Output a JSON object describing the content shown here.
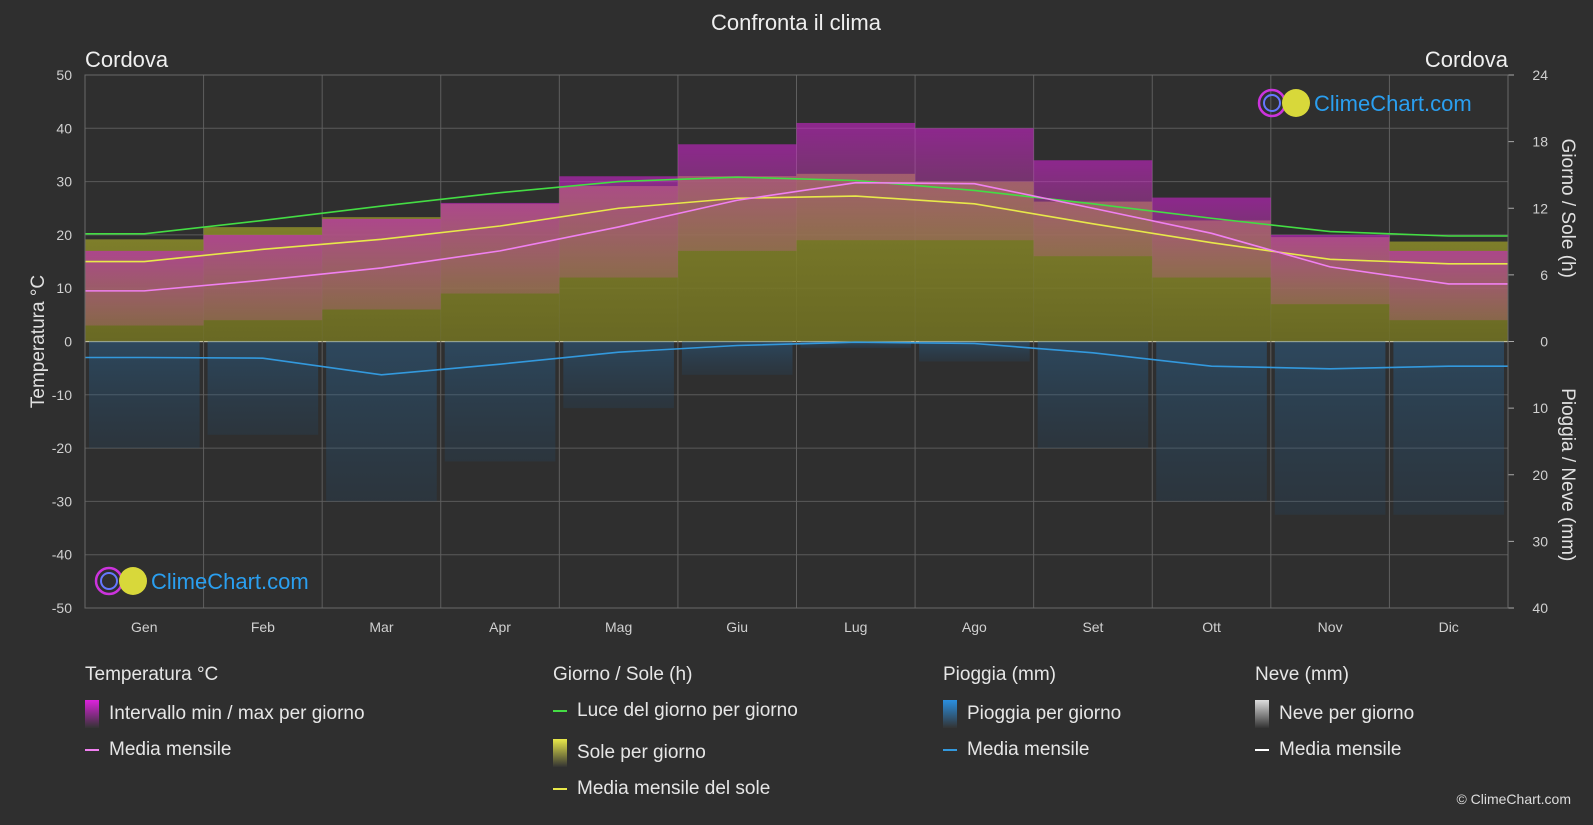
{
  "chart_data": {
    "type": "area",
    "title": "Confronta il clima",
    "location_left": "Cordova",
    "location_right": "Cordova",
    "ylabel_left": "Temperatura °C",
    "ylabel_right_top": "Giorno / Sole (h)",
    "ylabel_right_bottom": "Pioggia / Neve (mm)",
    "ylim_temperature": [
      -50,
      50
    ],
    "ylim_hours": [
      0,
      24
    ],
    "ylim_precip_mm": [
      0,
      40
    ],
    "left_ticks": [
      "50",
      "40",
      "30",
      "20",
      "10",
      "0",
      "-10",
      "-20",
      "-30",
      "-40",
      "-50"
    ],
    "right_top_ticks": [
      "24",
      "18",
      "12",
      "6",
      "0"
    ],
    "right_bottom_ticks": [
      "10",
      "20",
      "30",
      "40"
    ],
    "categories": [
      "Gen",
      "Feb",
      "Mar",
      "Apr",
      "Mag",
      "Giu",
      "Lug",
      "Ago",
      "Set",
      "Ott",
      "Nov",
      "Dic"
    ],
    "grid": true,
    "series": [
      {
        "name": "Luce del giorno per giorno",
        "unit": "h",
        "color": "#44dd44",
        "values": [
          9.7,
          10.9,
          12.2,
          13.4,
          14.4,
          14.8,
          14.5,
          13.6,
          12.4,
          11.1,
          9.9,
          9.5
        ]
      },
      {
        "name": "Media mensile del sole",
        "unit": "h",
        "color": "#e8e84a",
        "values": [
          7.2,
          8.3,
          9.2,
          10.4,
          12.0,
          12.9,
          13.1,
          12.4,
          10.6,
          8.9,
          7.4,
          7.0
        ]
      },
      {
        "name": "Media mensile",
        "unit": "°C",
        "color": "#f080f0",
        "values": [
          9.5,
          11.5,
          13.8,
          17.0,
          21.5,
          26.5,
          29.8,
          29.6,
          25.0,
          20.3,
          14.0,
          10.8
        ]
      },
      {
        "name": "Media mensile",
        "unit": "mm",
        "color": "#3399dd",
        "values": [
          2.4,
          2.5,
          5.0,
          3.4,
          1.6,
          0.6,
          0.1,
          0.3,
          1.7,
          3.7,
          4.1,
          3.7
        ]
      }
    ],
    "temp_range_daily": {
      "name": "Intervallo min / max per giorno",
      "min": [
        3,
        4,
        6,
        9,
        12,
        17,
        19,
        19,
        16,
        12,
        7,
        4
      ],
      "max": [
        17,
        20,
        23,
        26,
        31,
        37,
        41,
        40,
        34,
        27,
        20,
        17
      ]
    },
    "rain_daily": {
      "name": "Pioggia per giorno",
      "values_mm": [
        16,
        14,
        24,
        18,
        10,
        5,
        1,
        3,
        16,
        24,
        26,
        26
      ]
    }
  },
  "legend": {
    "groups": [
      {
        "title": "Temperatura °C",
        "items": [
          {
            "label": "Intervallo min / max per giorno",
            "swatch": "box",
            "color": "#dd22dd"
          },
          {
            "label": "Media mensile",
            "swatch": "line",
            "color": "#f080f0"
          }
        ]
      },
      {
        "title": "Giorno / Sole (h)",
        "items": [
          {
            "label": "Luce del giorno per giorno",
            "swatch": "line",
            "color": "#44dd44"
          },
          {
            "label": "Sole per giorno",
            "swatch": "box",
            "color": "#e8e84a"
          },
          {
            "label": "Media mensile del sole",
            "swatch": "line",
            "color": "#e8e84a"
          }
        ]
      },
      {
        "title": "Pioggia (mm)",
        "items": [
          {
            "label": "Pioggia per giorno",
            "swatch": "box",
            "color": "#2a8fe0"
          },
          {
            "label": "Media mensile",
            "swatch": "line",
            "color": "#3399dd"
          }
        ]
      },
      {
        "title": "Neve (mm)",
        "items": [
          {
            "label": "Neve per giorno",
            "swatch": "box",
            "color": "#dddddd"
          },
          {
            "label": "Media mensile",
            "swatch": "line",
            "color": "#ffffff"
          }
        ]
      }
    ]
  },
  "brand": {
    "logo_text": "ClimeChart.com",
    "copyright": "© ClimeChart.com"
  }
}
